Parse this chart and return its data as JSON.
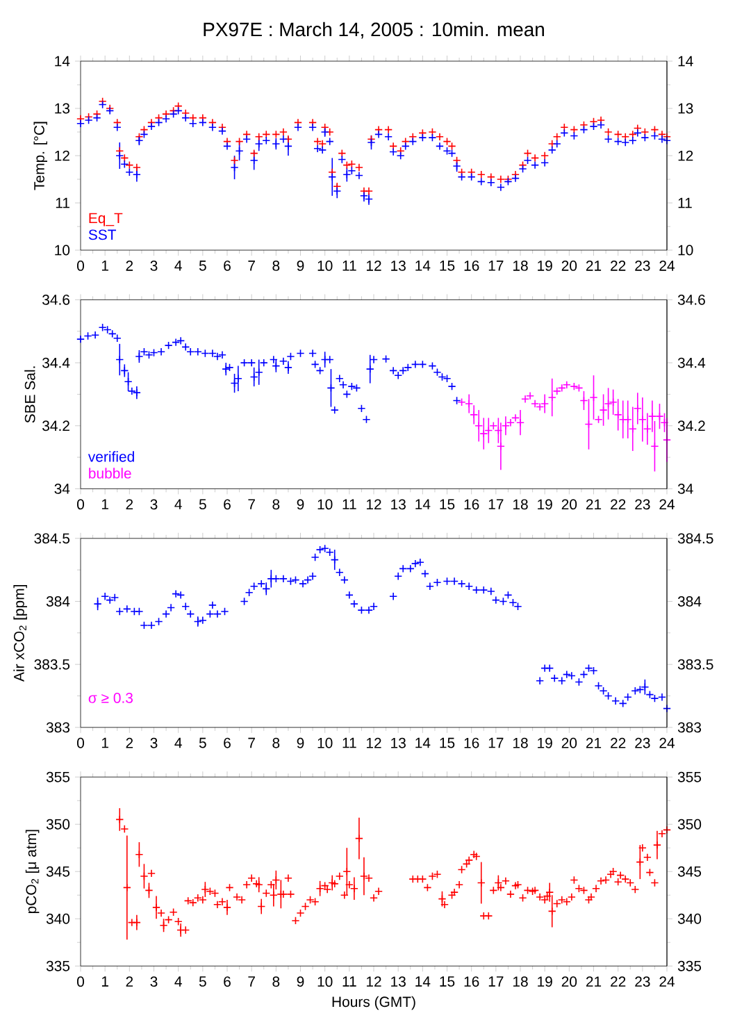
{
  "chart_data": [
    {
      "type": "scatter",
      "title": "PX97E : March 14, 2005 : 10min. mean",
      "ylabel": "Temp. [°C]",
      "marker": "cross",
      "legend": "bottom left",
      "xlim": [
        0,
        24
      ],
      "xticks": [
        0,
        1,
        2,
        3,
        4,
        5,
        6,
        7,
        8,
        9,
        10,
        11,
        12,
        13,
        14,
        15,
        16,
        17,
        18,
        19,
        20,
        21,
        22,
        23,
        24
      ],
      "ylim": [
        10,
        14
      ],
      "yticks": [
        10,
        11,
        12,
        13,
        14
      ],
      "y2lim": [
        10,
        14
      ],
      "y2ticks": [
        10,
        11,
        12,
        13,
        14
      ],
      "x": [
        0,
        0.33,
        0.67,
        0.9,
        1.2,
        1.5,
        1.6,
        1.8,
        2.0,
        2.3,
        2.4,
        2.6,
        2.9,
        3.2,
        3.5,
        3.8,
        4.0,
        4.3,
        4.6,
        5.0,
        5.4,
        5.8,
        6.0,
        6.3,
        6.5,
        6.8,
        7.1,
        7.3,
        7.6,
        8.0,
        8.3,
        8.5,
        8.9,
        9.5,
        9.7,
        9.9,
        10.0,
        10.2,
        10.3,
        10.5,
        10.7,
        10.9,
        11.1,
        11.4,
        11.6,
        11.8,
        11.9,
        12.2,
        12.6,
        12.8,
        13.1,
        13.3,
        13.6,
        14.0,
        14.4,
        14.7,
        15.0,
        15.2,
        15.4,
        15.6,
        16.0,
        16.4,
        16.8,
        17.2,
        17.5,
        17.8,
        18.1,
        18.3,
        18.6,
        19.0,
        19.3,
        19.5,
        19.8,
        20.2,
        20.6,
        21.0,
        21.3,
        21.6,
        22.0,
        22.3,
        22.6,
        22.8,
        23.1,
        23.5,
        23.8,
        24.0
      ],
      "series": [
        {
          "name": "Eq_T",
          "color": "#ff0000",
          "values": [
            12.78,
            12.82,
            12.88,
            13.15,
            13.0,
            12.7,
            12.1,
            11.95,
            11.8,
            11.75,
            12.4,
            12.55,
            12.7,
            12.8,
            12.88,
            12.95,
            13.05,
            12.9,
            12.8,
            12.8,
            12.7,
            12.6,
            12.3,
            11.9,
            12.3,
            12.45,
            12.05,
            12.4,
            12.45,
            12.45,
            12.5,
            12.35,
            12.7,
            12.7,
            12.3,
            12.25,
            12.6,
            12.5,
            11.65,
            11.35,
            12.05,
            11.8,
            11.82,
            11.75,
            11.25,
            11.25,
            12.35,
            12.55,
            12.55,
            12.2,
            12.1,
            12.3,
            12.4,
            12.48,
            12.5,
            12.4,
            12.3,
            12.2,
            11.9,
            11.65,
            11.65,
            11.6,
            11.55,
            11.5,
            11.5,
            11.6,
            11.8,
            12.05,
            11.95,
            12.0,
            12.25,
            12.4,
            12.6,
            12.55,
            12.65,
            12.72,
            12.75,
            12.5,
            12.45,
            12.4,
            12.45,
            12.58,
            12.5,
            12.55,
            12.45,
            12.4
          ]
        },
        {
          "name": "SST",
          "color": "#0000ff",
          "values": [
            12.68,
            12.75,
            12.8,
            13.08,
            12.95,
            12.6,
            12.0,
            11.82,
            11.65,
            11.6,
            12.32,
            12.45,
            12.62,
            12.7,
            12.78,
            12.88,
            12.95,
            12.8,
            12.68,
            12.7,
            12.6,
            12.52,
            12.2,
            11.75,
            12.1,
            12.35,
            11.9,
            12.25,
            12.32,
            12.25,
            12.35,
            12.2,
            12.6,
            12.6,
            12.15,
            12.12,
            12.5,
            12.3,
            11.55,
            11.25,
            11.92,
            11.6,
            11.68,
            11.58,
            11.15,
            11.08,
            12.28,
            12.45,
            12.4,
            12.08,
            12.0,
            12.2,
            12.3,
            12.38,
            12.38,
            12.2,
            12.1,
            12.05,
            11.78,
            11.55,
            11.55,
            11.45,
            11.43,
            11.33,
            11.45,
            11.52,
            11.72,
            11.9,
            11.8,
            11.85,
            12.12,
            12.25,
            12.48,
            12.42,
            12.55,
            12.62,
            12.65,
            12.35,
            12.3,
            12.28,
            12.32,
            12.48,
            12.38,
            12.42,
            12.35,
            12.32
          ],
          "errors": [
            null,
            null,
            null,
            null,
            null,
            null,
            0.28,
            null,
            null,
            0.15,
            0.1,
            null,
            null,
            null,
            null,
            null,
            null,
            null,
            null,
            null,
            null,
            null,
            null,
            0.25,
            0.2,
            null,
            0.2,
            0.15,
            null,
            0.12,
            null,
            0.2,
            null,
            null,
            null,
            null,
            0.1,
            null,
            0.4,
            0.15,
            null,
            0.15,
            null,
            null,
            0.12,
            0.12,
            0.15,
            null,
            null,
            null,
            null,
            null,
            null,
            null,
            null,
            null,
            null,
            null,
            0.12,
            null,
            null,
            null,
            null,
            null,
            null,
            null,
            null,
            null,
            null,
            null,
            null,
            null,
            null,
            null,
            null,
            null,
            null,
            null,
            null,
            null,
            null,
            null,
            null,
            null,
            null,
            null
          ]
        }
      ]
    },
    {
      "type": "scatter",
      "ylabel": "SBE Sal.",
      "marker": "cross",
      "legend": "bottom left",
      "xlim": [
        0,
        24
      ],
      "xticks": [
        0,
        1,
        2,
        3,
        4,
        5,
        6,
        7,
        8,
        9,
        10,
        11,
        12,
        13,
        14,
        15,
        16,
        17,
        18,
        19,
        20,
        21,
        22,
        23,
        24
      ],
      "ylim": [
        34,
        34.6
      ],
      "yticks": [
        34,
        34.2,
        34.4,
        34.6
      ],
      "y2lim": [
        34,
        34.6
      ],
      "y2ticks": [
        34,
        34.2,
        34.4,
        34.6
      ],
      "series": [
        {
          "name": "verified",
          "color": "#0000ff",
          "x": [
            0,
            0.3,
            0.6,
            0.9,
            1.1,
            1.3,
            1.5,
            1.6,
            1.8,
            1.95,
            2.1,
            2.3,
            2.4,
            2.6,
            2.8,
            3.0,
            3.3,
            3.6,
            3.9,
            4.1,
            4.3,
            4.5,
            4.8,
            5.1,
            5.4,
            5.6,
            5.8,
            5.95,
            6.1,
            6.3,
            6.45,
            6.7,
            7.0,
            7.1,
            7.3,
            7.5,
            7.9,
            8.0,
            8.3,
            8.5,
            8.6,
            9.0,
            9.5,
            9.6,
            9.8,
            10.0,
            10.2,
            10.25,
            10.4,
            10.6,
            10.75,
            10.9,
            11.1,
            11.3,
            11.5,
            11.7,
            11.85,
            12.0,
            12.5,
            12.8,
            13.0,
            13.2,
            13.4,
            13.7,
            14.0,
            14.4,
            14.6,
            14.8,
            15.0,
            15.2,
            15.4
          ],
          "values": [
            34.475,
            34.485,
            34.488,
            34.512,
            34.505,
            34.492,
            34.478,
            34.41,
            34.375,
            34.34,
            34.31,
            34.305,
            34.42,
            34.435,
            34.425,
            34.432,
            34.435,
            34.455,
            34.465,
            34.47,
            34.45,
            34.435,
            34.435,
            34.43,
            34.43,
            34.42,
            34.425,
            34.38,
            34.385,
            34.335,
            34.35,
            34.4,
            34.4,
            34.355,
            34.37,
            34.4,
            34.41,
            34.39,
            34.405,
            34.385,
            34.42,
            34.43,
            34.43,
            34.395,
            34.375,
            34.41,
            34.41,
            34.32,
            34.25,
            34.35,
            34.33,
            34.3,
            34.325,
            34.32,
            34.255,
            34.22,
            34.38,
            34.41,
            34.412,
            34.375,
            34.36,
            34.375,
            34.385,
            34.395,
            34.395,
            34.39,
            34.37,
            34.355,
            34.35,
            34.325,
            34.28
          ],
          "errors": [
            null,
            null,
            null,
            null,
            null,
            null,
            null,
            0.05,
            0.02,
            0.03,
            null,
            0.02,
            0.02,
            null,
            null,
            null,
            null,
            null,
            null,
            null,
            null,
            null,
            null,
            null,
            null,
            null,
            null,
            0.02,
            null,
            0.03,
            0.04,
            null,
            null,
            0.03,
            0.04,
            null,
            null,
            0.02,
            null,
            0.02,
            null,
            null,
            null,
            null,
            null,
            0.025,
            null,
            0.06,
            null,
            null,
            null,
            null,
            null,
            null,
            null,
            null,
            0.045,
            null,
            null,
            null,
            null,
            null,
            null,
            null,
            null,
            null,
            null,
            null,
            null,
            null,
            null
          ]
        },
        {
          "name": "bubble",
          "color": "#ff00ff",
          "x": [
            15.6,
            15.9,
            16.1,
            16.3,
            16.5,
            16.7,
            16.9,
            17.1,
            17.2,
            17.4,
            17.6,
            17.8,
            18.0,
            18.2,
            18.4,
            18.6,
            18.8,
            19.0,
            19.3,
            19.5,
            19.7,
            19.9,
            20.2,
            20.4,
            20.6,
            20.8,
            21.0,
            21.2,
            21.4,
            21.6,
            21.8,
            22.0,
            22.2,
            22.4,
            22.6,
            22.8,
            23.0,
            23.2,
            23.4,
            23.5,
            23.7,
            23.9,
            24.0
          ],
          "values": [
            34.275,
            34.27,
            34.235,
            34.2,
            34.175,
            34.185,
            34.2,
            34.185,
            34.135,
            34.2,
            34.21,
            34.225,
            34.21,
            34.285,
            34.295,
            34.27,
            34.26,
            34.27,
            34.29,
            34.31,
            34.32,
            34.33,
            34.325,
            34.32,
            34.28,
            34.205,
            34.29,
            34.22,
            34.25,
            34.27,
            34.275,
            34.235,
            34.22,
            34.22,
            34.19,
            34.255,
            34.22,
            34.19,
            34.23,
            34.135,
            34.23,
            34.21,
            34.155
          ],
          "errors": [
            null,
            0.03,
            0.03,
            0.05,
            0.05,
            0.04,
            null,
            0.04,
            0.075,
            0.03,
            null,
            null,
            0.04,
            null,
            null,
            null,
            null,
            0.03,
            0.06,
            null,
            null,
            null,
            null,
            null,
            0.03,
            0.08,
            0.07,
            null,
            0.05,
            0.05,
            0.04,
            0.05,
            0.06,
            0.06,
            0.07,
            0.05,
            0.07,
            0.05,
            0.05,
            0.08,
            0.04,
            0.03,
            0.07
          ]
        }
      ]
    },
    {
      "type": "scatter",
      "ylabel": "Air xCO$_{2}$ [ppm]",
      "marker": "cross",
      "annotations": [
        "σ ≥ 0.3"
      ],
      "xlim": [
        0,
        24
      ],
      "xticks": [
        0,
        1,
        2,
        3,
        4,
        5,
        6,
        7,
        8,
        9,
        10,
        11,
        12,
        13,
        14,
        15,
        16,
        17,
        18,
        19,
        20,
        21,
        22,
        23,
        24
      ],
      "ylim": [
        383,
        384.5
      ],
      "yticks": [
        383,
        383.5,
        384,
        384.5
      ],
      "y2lim": [
        383,
        384.5
      ],
      "y2ticks": [
        383,
        383.5,
        384,
        384.5
      ],
      "series": [
        {
          "color": "#0000ff",
          "x": [
            0.7,
            1.0,
            1.2,
            1.4,
            1.6,
            1.9,
            2.2,
            2.4,
            2.6,
            2.9,
            3.2,
            3.5,
            3.7,
            3.9,
            4.1,
            4.3,
            4.5,
            4.8,
            5.0,
            5.3,
            5.4,
            5.6,
            5.9,
            6.7,
            6.9,
            7.1,
            7.4,
            7.6,
            7.8,
            8.0,
            8.3,
            8.6,
            8.8,
            9.1,
            9.3,
            9.5,
            9.6,
            9.8,
            10.0,
            10.2,
            10.4,
            10.6,
            10.8,
            11.0,
            11.2,
            11.5,
            11.8,
            12.0,
            12.8,
            13.0,
            13.2,
            13.5,
            13.7,
            13.9,
            14.1,
            14.3,
            14.6,
            15.0,
            15.3,
            15.6,
            15.9,
            16.2,
            16.5,
            16.8,
            17.0,
            17.3,
            17.5,
            17.7,
            17.9,
            18.8,
            19.0,
            19.2,
            19.4,
            19.7,
            19.9,
            20.1,
            20.4,
            20.6,
            20.8,
            21.0,
            21.2,
            21.4,
            21.6,
            21.9,
            22.2,
            22.4,
            22.7,
            22.9,
            23.1,
            23.3,
            23.5,
            23.8,
            24.0
          ],
          "values": [
            383.98,
            384.04,
            384.01,
            384.03,
            383.92,
            383.94,
            383.92,
            383.92,
            383.81,
            383.81,
            383.84,
            383.9,
            383.95,
            384.06,
            384.05,
            383.96,
            383.9,
            383.84,
            383.85,
            383.9,
            383.97,
            383.9,
            383.92,
            384.0,
            384.07,
            384.12,
            384.14,
            384.1,
            384.18,
            384.18,
            384.18,
            384.16,
            384.17,
            384.14,
            384.17,
            384.2,
            384.35,
            384.41,
            384.42,
            384.39,
            384.33,
            384.23,
            384.17,
            384.05,
            383.98,
            383.93,
            383.93,
            383.96,
            384.04,
            384.2,
            384.26,
            384.26,
            384.3,
            384.31,
            384.22,
            384.12,
            384.15,
            384.16,
            384.16,
            384.14,
            384.12,
            384.09,
            384.09,
            384.08,
            384.01,
            384.0,
            384.05,
            383.99,
            383.96,
            383.37,
            383.47,
            383.47,
            383.39,
            383.37,
            383.42,
            383.41,
            383.36,
            383.42,
            383.47,
            383.45,
            383.33,
            383.29,
            383.25,
            383.21,
            383.19,
            383.24,
            383.29,
            383.3,
            383.32,
            383.26,
            383.23,
            383.24,
            383.15
          ],
          "errors": [
            0.05,
            null,
            null,
            null,
            null,
            null,
            null,
            null,
            null,
            null,
            null,
            null,
            null,
            null,
            null,
            null,
            null,
            0.04,
            null,
            null,
            null,
            null,
            null,
            null,
            null,
            null,
            null,
            0.05,
            0.07,
            null,
            null,
            null,
            null,
            null,
            null,
            null,
            null,
            null,
            null,
            null,
            0.08,
            null,
            null,
            null,
            null,
            null,
            null,
            null,
            null,
            null,
            null,
            null,
            null,
            null,
            null,
            null,
            null,
            null,
            null,
            null,
            null,
            null,
            null,
            null,
            null,
            null,
            null,
            null,
            null,
            null,
            null,
            null,
            null,
            null,
            null,
            null,
            null,
            null,
            null,
            null,
            null,
            null,
            null,
            null,
            null,
            null,
            null,
            null,
            0.06,
            null,
            null,
            null,
            null
          ]
        }
      ]
    },
    {
      "type": "scatter",
      "ylabel": "pCO$_{2}$ [μ atm]",
      "xlabel": "Hours (GMT)",
      "marker": "cross",
      "xlim": [
        0,
        24
      ],
      "xticks": [
        0,
        1,
        2,
        3,
        4,
        5,
        6,
        7,
        8,
        9,
        10,
        11,
        12,
        13,
        14,
        15,
        16,
        17,
        18,
        19,
        20,
        21,
        22,
        23,
        24
      ],
      "ylim": [
        335,
        355
      ],
      "yticks": [
        335,
        340,
        345,
        350,
        355
      ],
      "y2lim": [
        335,
        355
      ],
      "y2ticks": [
        335,
        340,
        345,
        350,
        355
      ],
      "series": [
        {
          "color": "#ff0000",
          "x": [
            1.6,
            1.8,
            1.9,
            2.1,
            2.3,
            2.4,
            2.6,
            2.8,
            2.9,
            3.1,
            3.3,
            3.4,
            3.6,
            3.8,
            4.0,
            4.1,
            4.3,
            4.4,
            4.6,
            4.8,
            5.0,
            5.1,
            5.3,
            5.5,
            5.6,
            5.8,
            6.0,
            6.1,
            6.4,
            6.6,
            6.8,
            7.0,
            7.2,
            7.3,
            7.4,
            7.6,
            7.8,
            7.9,
            8.0,
            8.2,
            8.3,
            8.5,
            8.6,
            8.8,
            9.0,
            9.2,
            9.4,
            9.6,
            9.8,
            10.0,
            10.1,
            10.3,
            10.4,
            10.6,
            10.8,
            10.9,
            11.0,
            11.2,
            11.4,
            11.6,
            11.8,
            12.0,
            12.2,
            13.6,
            13.8,
            14.0,
            14.2,
            14.4,
            14.6,
            14.8,
            14.9,
            15.2,
            15.3,
            15.5,
            15.6,
            15.8,
            15.9,
            16.1,
            16.2,
            16.4,
            16.5,
            16.7,
            16.9,
            17.1,
            17.2,
            17.4,
            17.6,
            17.8,
            17.9,
            18.1,
            18.3,
            18.5,
            18.6,
            18.8,
            19.0,
            19.1,
            19.2,
            19.3,
            19.5,
            19.7,
            19.9,
            20.1,
            20.2,
            20.4,
            20.6,
            20.8,
            20.9,
            21.1,
            21.3,
            21.5,
            21.7,
            21.8,
            22.0,
            22.1,
            22.3,
            22.5,
            22.7,
            22.9,
            23.0,
            23.2,
            23.3,
            23.5,
            23.6,
            23.8,
            24.0
          ],
          "values": [
            350.5,
            349.5,
            343.3,
            339.6,
            339.6,
            346.8,
            344.5,
            343,
            344.8,
            341.2,
            340.6,
            339.3,
            339.9,
            340.7,
            339.7,
            338.8,
            338.8,
            341.9,
            341.7,
            342.2,
            342.0,
            343.1,
            342.9,
            342.7,
            341.5,
            341.8,
            341.2,
            343.3,
            342.3,
            342,
            343.6,
            344.3,
            343.7,
            343.6,
            341.3,
            342.7,
            343.6,
            342.5,
            344.1,
            342.6,
            342.6,
            344.3,
            342.6,
            339.8,
            340.6,
            341.3,
            342,
            341.8,
            343.2,
            343.5,
            343.1,
            343.8,
            343.7,
            344.5,
            342.5,
            345,
            343.6,
            343.2,
            348.5,
            344.5,
            344.3,
            342.2,
            342.9,
            344.2,
            344.2,
            344.2,
            343.3,
            344.5,
            344.7,
            342.1,
            341.5,
            342.5,
            342.8,
            343.6,
            345.2,
            345.8,
            346.2,
            346.8,
            346.6,
            343.8,
            340.3,
            340.3,
            343,
            343.8,
            343.3,
            344,
            342.6,
            343.5,
            343.6,
            342.2,
            343,
            342.9,
            343,
            342.3,
            342,
            342.4,
            342.8,
            340.8,
            341.6,
            342,
            341.8,
            342.3,
            344.1,
            343.2,
            343,
            342,
            342.3,
            343.2,
            344,
            344.1,
            344.7,
            345,
            343.9,
            344.6,
            344.2,
            343.8,
            343.1,
            346,
            347.5,
            346.5,
            344.9,
            343.8,
            347.8,
            349,
            349.4
          ],
          "errors": [
            1.2,
            null,
            5.5,
            null,
            0.8,
            1.3,
            1.3,
            0.8,
            null,
            1.2,
            null,
            0.7,
            null,
            null,
            null,
            0.7,
            null,
            null,
            null,
            null,
            null,
            0.8,
            null,
            null,
            null,
            null,
            0.8,
            null,
            null,
            null,
            null,
            null,
            null,
            0.8,
            0.8,
            null,
            null,
            1.2,
            1,
            1.5,
            null,
            null,
            null,
            null,
            null,
            null,
            null,
            null,
            0.8,
            null,
            null,
            0.8,
            null,
            null,
            null,
            2.5,
            null,
            1.2,
            2.2,
            2,
            null,
            null,
            null,
            null,
            null,
            null,
            null,
            null,
            null,
            0.8,
            null,
            null,
            null,
            null,
            null,
            null,
            null,
            null,
            null,
            2.2,
            null,
            null,
            null,
            0.8,
            null,
            null,
            null,
            null,
            null,
            null,
            null,
            null,
            null,
            null,
            null,
            null,
            1,
            1.7,
            null,
            null,
            null,
            null,
            null,
            null,
            null,
            null,
            null,
            null,
            null,
            null,
            null,
            null,
            null,
            null,
            null,
            null,
            null,
            1.8,
            null,
            null,
            null,
            null,
            1.5,
            null,
            null
          ]
        }
      ]
    }
  ]
}
